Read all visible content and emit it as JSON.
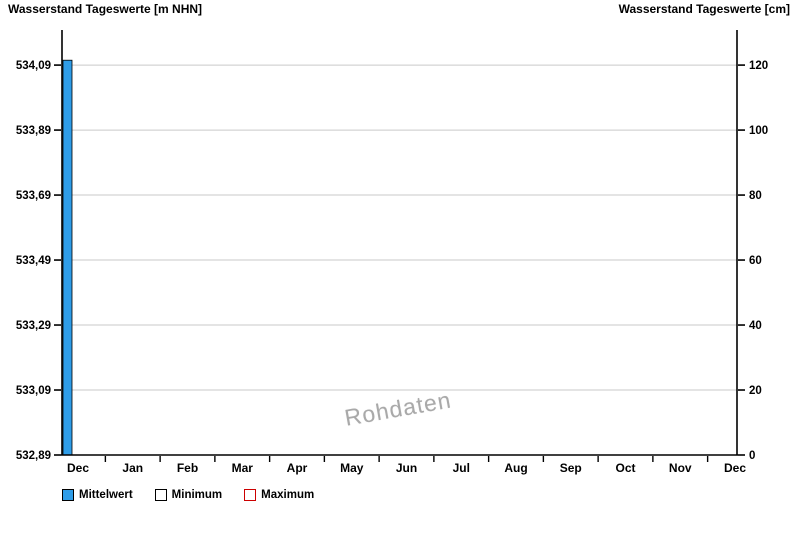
{
  "titles": {
    "left": "Wasserstand Tageswerte [m NHN]",
    "right": "Wasserstand Tageswerte [cm]"
  },
  "chart_data": {
    "type": "bar",
    "title": "Wasserstand Tageswerte",
    "watermark": "Rohdaten",
    "grid": "horizontal",
    "legend_position": "bottom-left",
    "left_axis": {
      "unit": "m NHN",
      "tick_labels": [
        "532,89",
        "533,09",
        "533,29",
        "533,49",
        "533,69",
        "533,89",
        "534,09"
      ],
      "tick_step_m": 0.2,
      "range_m": [
        532.89,
        534.2
      ]
    },
    "right_axis": {
      "unit": "cm",
      "ticks": [
        0,
        20,
        40,
        60,
        80,
        100,
        120
      ],
      "range_cm": [
        0,
        130.8
      ]
    },
    "x_axis": {
      "tick_labels": [
        "Dec",
        "Jan",
        "Feb",
        "Mar",
        "Apr",
        "May",
        "Jun",
        "Jul",
        "Aug",
        "Sep",
        "Oct",
        "Nov",
        "Dec"
      ]
    },
    "series": [
      {
        "name": "Mittelwert",
        "color": "#2f9de8",
        "outline": "#000000",
        "points": [
          {
            "x_label": "Dec",
            "x_frac": 0.0,
            "value_cm": 121.5,
            "value_m_nhn": 534.105
          }
        ]
      }
    ]
  },
  "legend": {
    "items": [
      {
        "label": "Mittelwert",
        "fill": "#2f9de8",
        "border": "#000000"
      },
      {
        "label": "Minimum",
        "fill": "#ffffff",
        "border": "#000000"
      },
      {
        "label": "Maximum",
        "fill": "#ffffff",
        "border": "#cc0000"
      }
    ]
  },
  "colors": {
    "grid": "#c9c9c9",
    "axis": "#000000",
    "tick": "#000000",
    "watermark": "#a9a9a9"
  }
}
